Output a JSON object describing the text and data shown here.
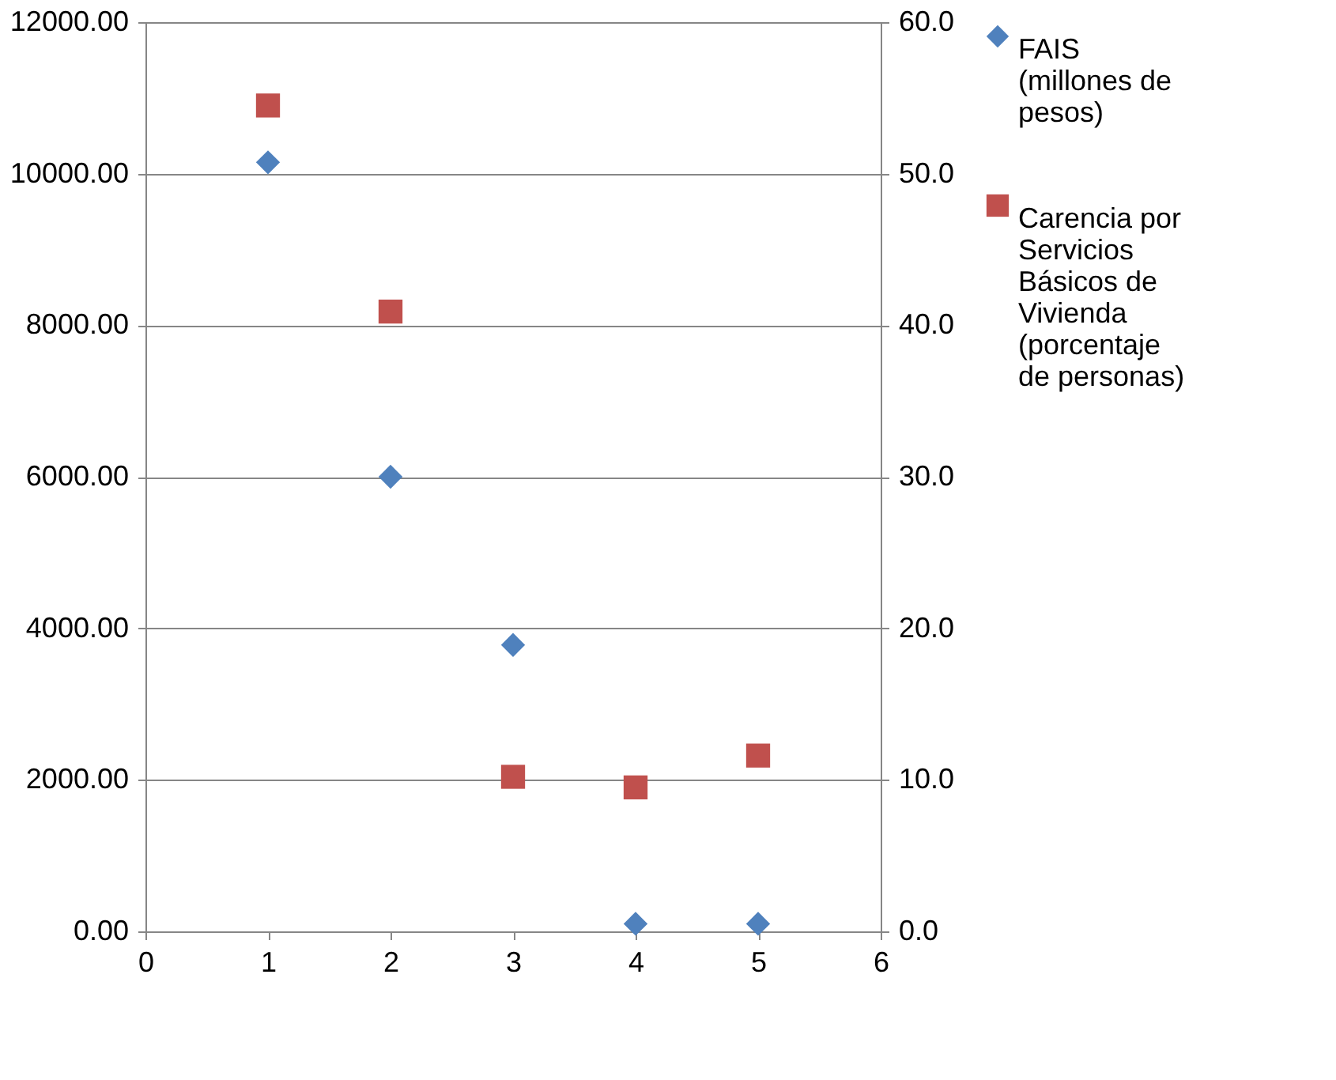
{
  "chart_data": {
    "type": "scatter",
    "xlim": [
      0,
      6
    ],
    "xticks": [
      0,
      1,
      2,
      3,
      4,
      5,
      6
    ],
    "ylim": [
      0,
      12000
    ],
    "yticks": [
      {
        "value": 0,
        "label": "0.00"
      },
      {
        "value": 2000,
        "label": "2000.00"
      },
      {
        "value": 4000,
        "label": "4000.00"
      },
      {
        "value": 6000,
        "label": "6000.00"
      },
      {
        "value": 8000,
        "label": "8000.00"
      },
      {
        "value": 10000,
        "label": "10000.00"
      },
      {
        "value": 12000,
        "label": "12000.00"
      }
    ],
    "y2lim": [
      0,
      60
    ],
    "y2ticks": [
      {
        "value": 0,
        "label": "0.0"
      },
      {
        "value": 10,
        "label": "10.0"
      },
      {
        "value": 20,
        "label": "20.0"
      },
      {
        "value": 30,
        "label": "30.0"
      },
      {
        "value": 40,
        "label": "40.0"
      },
      {
        "value": 50,
        "label": "50.0"
      },
      {
        "value": 60,
        "label": "60.0"
      }
    ],
    "grid": "y",
    "legend": "right",
    "series": [
      {
        "name": "FAIS (millones de pesos)",
        "color": "#4f81bd",
        "marker": "diamond",
        "x": [
          1,
          2,
          3,
          4,
          5
        ],
        "values": [
          10150,
          6000,
          3780,
          100,
          100
        ]
      },
      {
        "name": "Carencia por Servicios Básicos de Vivienda (porcentaje de personas)",
        "color": "#c0504d",
        "marker": "square",
        "axis": "y2",
        "x": [
          1,
          2,
          3,
          4,
          5
        ],
        "values": [
          54.5,
          40.9,
          10.2,
          9.5,
          11.6
        ]
      }
    ]
  }
}
